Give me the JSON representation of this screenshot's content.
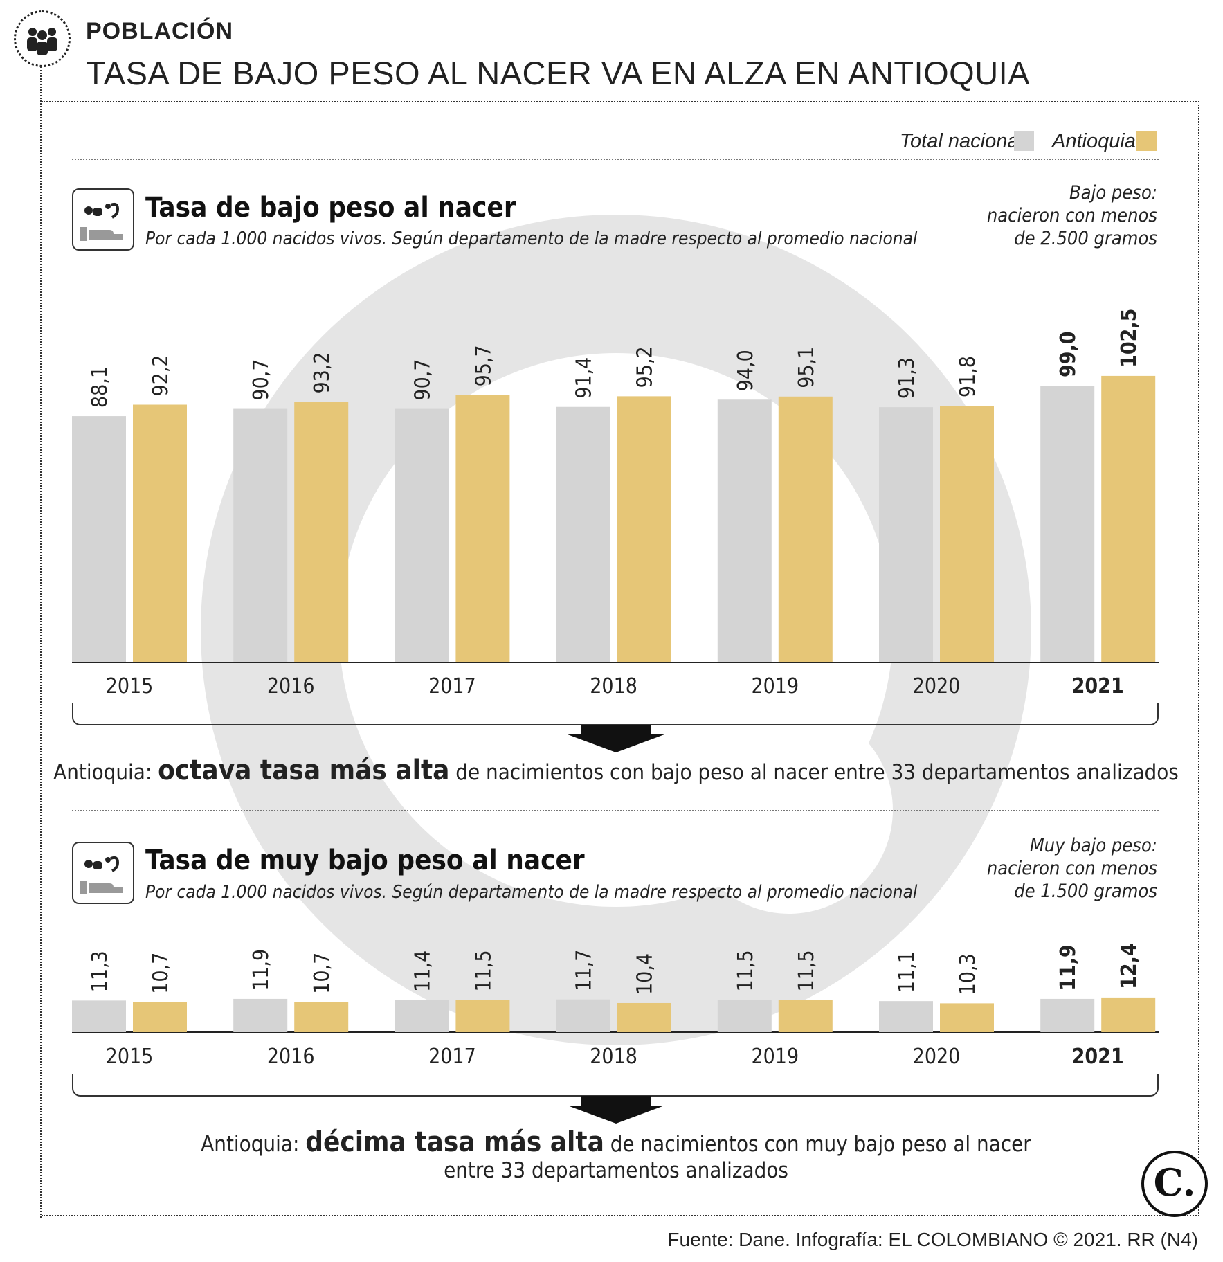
{
  "header": {
    "kicker": "POBLACIÓN",
    "title": "TASA DE BAJO PESO AL NACER VA EN ALZA EN ANTIOQUIA",
    "icon": "people-group-icon"
  },
  "legend": {
    "national_label": "Total nacional",
    "antioquia_label": "Antioquia"
  },
  "colors": {
    "national": "#d4d4d4",
    "antioquia": "#e6c677",
    "watermark": "rgba(110,110,110,0.18)"
  },
  "section1": {
    "title": "Tasa de bajo peso al nacer",
    "subtitle": "Por cada 1.000 nacidos vivos. Según departamento de la madre respecto al promedio nacional",
    "note_lines": [
      "Bajo peso:",
      "nacieron con menos",
      "de 2.500 gramos"
    ],
    "statement_prefix": "Antioquia: ",
    "statement_bold": "octava tasa más alta",
    "statement_suffix": " de nacimientos con bajo peso al nacer entre 33 departamentos analizados",
    "icon": "baby-on-hand-icon"
  },
  "section2": {
    "title": "Tasa de muy bajo peso al nacer",
    "subtitle": "Por cada 1.000 nacidos vivos. Según departamento de la madre respecto al promedio nacional",
    "note_lines": [
      "Muy bajo peso:",
      "nacieron con menos",
      "de 1.500 gramos"
    ],
    "statement_prefix": "Antioquia: ",
    "statement_bold": "décima tasa más alta",
    "statement_suffix": " de nacimientos con muy bajo peso al nacer",
    "statement_line2": "entre 33 departamentos analizados",
    "icon": "baby-on-hand-icon"
  },
  "footer": {
    "source": "Fuente: Dane. Infografía: EL COLOMBIANO © 2021. RR (N4)",
    "logo_letter": "C."
  },
  "chart_data": [
    {
      "type": "bar",
      "title": "Tasa de bajo peso al nacer",
      "categories": [
        "2015",
        "2016",
        "2017",
        "2018",
        "2019",
        "2020",
        "2021"
      ],
      "highlight_category": "2021",
      "series": [
        {
          "name": "Total nacional",
          "values": [
            88.1,
            90.7,
            90.7,
            91.4,
            94.0,
            91.3,
            99.0
          ],
          "labels": [
            "88,1",
            "90,7",
            "90,7",
            "91,4",
            "94,0",
            "91,3",
            "99,0"
          ]
        },
        {
          "name": "Antioquia",
          "values": [
            92.2,
            93.2,
            95.7,
            95.2,
            95.1,
            91.8,
            102.5
          ],
          "labels": [
            "92,2",
            "93,2",
            "95,7",
            "95,2",
            "95,1",
            "91,8",
            "102,5"
          ]
        }
      ],
      "ylim": [
        0,
        102.5
      ],
      "grid": false,
      "legend": "top-right"
    },
    {
      "type": "bar",
      "title": "Tasa de muy bajo peso al nacer",
      "categories": [
        "2015",
        "2016",
        "2017",
        "2018",
        "2019",
        "2020",
        "2021"
      ],
      "highlight_category": "2021",
      "series": [
        {
          "name": "Total nacional",
          "values": [
            11.3,
            11.9,
            11.4,
            11.7,
            11.5,
            11.1,
            11.9
          ],
          "labels": [
            "11,3",
            "11,9",
            "11,4",
            "11,7",
            "11,5",
            "11,1",
            "11,9"
          ]
        },
        {
          "name": "Antioquia",
          "values": [
            10.7,
            10.7,
            11.5,
            10.4,
            11.5,
            10.3,
            12.4
          ],
          "labels": [
            "10,7",
            "10,7",
            "11,5",
            "10,4",
            "11,5",
            "10,3",
            "12,4"
          ]
        }
      ],
      "ylim": [
        0,
        102.5
      ],
      "grid": false,
      "legend": "top-right"
    }
  ]
}
